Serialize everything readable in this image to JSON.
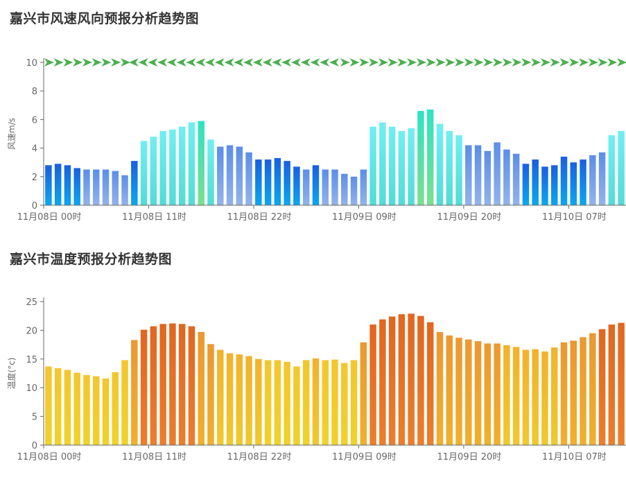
{
  "chart_data": [
    {
      "type": "bar",
      "title": "嘉兴市风速风向预报分析趋势图",
      "ylabel": "风速m/s",
      "ylim": [
        0,
        10
      ],
      "yticks": [
        0,
        2,
        4,
        6,
        8,
        10
      ],
      "xtick_labels": [
        "11月08日 00时",
        "11月08日 11时",
        "11月08日 22时",
        "11月09日 09时",
        "11月09日 20时",
        "11月10日 07时"
      ],
      "xtick_indices": [
        0,
        11,
        22,
        33,
        44,
        55
      ],
      "grid": false,
      "direction_markers": "arrow-icon",
      "marker_color": "#4caf50",
      "values": [
        2.8,
        2.9,
        2.8,
        2.6,
        2.5,
        2.5,
        2.5,
        2.4,
        2.1,
        3.1,
        4.5,
        4.8,
        5.2,
        5.3,
        5.5,
        5.8,
        5.9,
        4.6,
        4.1,
        4.2,
        4.1,
        3.7,
        3.2,
        3.2,
        3.3,
        3.1,
        2.7,
        2.5,
        2.8,
        2.5,
        2.5,
        2.2,
        2.0,
        2.5,
        5.5,
        5.8,
        5.5,
        5.2,
        5.4,
        6.6,
        6.7,
        5.7,
        5.2,
        4.9,
        4.2,
        4.2,
        3.8,
        4.4,
        3.9,
        3.6,
        2.9,
        3.2,
        2.7,
        2.8,
        3.4,
        3.0,
        3.2,
        3.5,
        3.7,
        4.9,
        5.2
      ],
      "directions": [
        "R",
        "R",
        "R",
        "R",
        "R",
        "R",
        "R",
        "R",
        "R",
        "L",
        "L",
        "L",
        "L",
        "L",
        "L",
        "L",
        "L",
        "L",
        "L",
        "L",
        "L",
        "L",
        "L",
        "L",
        "L",
        "L",
        "L",
        "L",
        "L",
        "L",
        "L",
        "R",
        "R",
        "R",
        "R",
        "R",
        "R",
        "R",
        "R",
        "R",
        "R",
        "R",
        "R",
        "R",
        "R",
        "R",
        "R",
        "R",
        "R",
        "R",
        "R",
        "R",
        "R",
        "R",
        "R",
        "R",
        "R",
        "R",
        "R",
        "R",
        "R"
      ]
    },
    {
      "type": "bar",
      "title": "嘉兴市温度预报分析趋势图",
      "ylabel": "温度(°c)",
      "ylim": [
        0,
        25
      ],
      "yticks": [
        0,
        5,
        10,
        15,
        20,
        25
      ],
      "xtick_labels": [
        "11月08日 00时",
        "11月08日 11时",
        "11月08日 22时",
        "11月09日 09时",
        "11月09日 20时",
        "11月10日 07时"
      ],
      "xtick_indices": [
        0,
        11,
        22,
        33,
        44,
        55
      ],
      "grid": false,
      "values": [
        13.7,
        13.4,
        13.1,
        12.6,
        12.2,
        12.0,
        11.6,
        12.7,
        14.8,
        18.3,
        20.1,
        20.7,
        21.1,
        21.2,
        21.1,
        20.7,
        19.7,
        17.6,
        16.6,
        16.0,
        15.8,
        15.5,
        15.0,
        14.8,
        14.8,
        14.5,
        13.7,
        14.8,
        15.1,
        14.8,
        14.9,
        14.3,
        14.8,
        17.9,
        21.0,
        21.9,
        22.4,
        22.8,
        22.9,
        22.5,
        21.4,
        19.7,
        19.1,
        18.7,
        18.4,
        18.1,
        17.7,
        17.7,
        17.4,
        17.1,
        16.6,
        16.7,
        16.3,
        17.0,
        17.9,
        18.2,
        18.8,
        19.5,
        20.2,
        21.0,
        21.3
      ]
    }
  ]
}
